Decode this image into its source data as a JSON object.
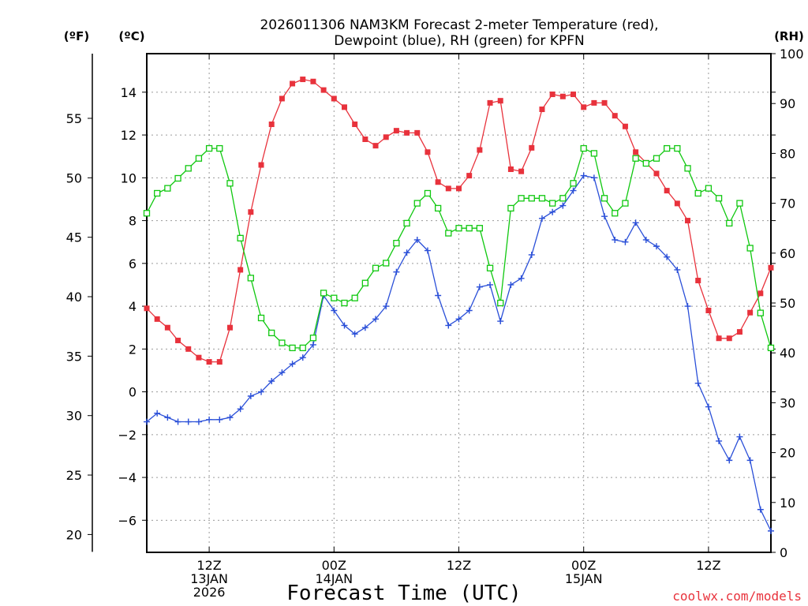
{
  "chart_data": {
    "type": "line",
    "title_lines": [
      "2026011306 NAM3KM Forecast 2-meter Temperature (red),",
      "Dewpoint (blue), RH (green) for KPFN"
    ],
    "xlabel": "Forecast Time (UTC)",
    "credit": "coolwx.com/models",
    "left_axis_c": {
      "unit": "(ºC)",
      "range": [
        -7.5,
        15.8
      ],
      "ticks": [
        -6,
        -4,
        -2,
        0,
        2,
        4,
        6,
        8,
        10,
        12,
        14
      ]
    },
    "left_axis_f": {
      "unit": "(ºF)",
      "ticks": [
        20,
        25,
        30,
        35,
        40,
        45,
        50,
        55
      ]
    },
    "right_axis_rh": {
      "unit": "(RH)",
      "range": [
        0,
        100
      ],
      "ticks": [
        0,
        10,
        20,
        30,
        40,
        50,
        60,
        70,
        80,
        90,
        100
      ]
    },
    "x_range_hours": [
      0,
      60
    ],
    "x_ticks": [
      {
        "hour": 6,
        "lines": [
          "12Z",
          "13JAN",
          "2026"
        ]
      },
      {
        "hour": 18,
        "lines": [
          "00Z",
          "14JAN"
        ]
      },
      {
        "hour": 30,
        "lines": [
          "12Z"
        ]
      },
      {
        "hour": 42,
        "lines": [
          "00Z",
          "15JAN"
        ]
      },
      {
        "hour": 54,
        "lines": [
          "12Z"
        ]
      }
    ],
    "series": [
      {
        "name": "2-meter Temperature",
        "units": "C",
        "color": "#e8323c",
        "marker": "filled-square",
        "values": [
          3.9,
          3.4,
          3.0,
          2.4,
          2.0,
          1.6,
          1.4,
          1.4,
          3.0,
          5.7,
          8.4,
          10.6,
          12.5,
          13.7,
          14.4,
          14.6,
          14.5,
          14.1,
          13.7,
          13.3,
          12.5,
          11.8,
          11.5,
          11.9,
          12.2,
          12.1,
          12.1,
          11.2,
          9.8,
          9.5,
          9.5,
          10.1,
          11.3,
          13.5,
          13.6,
          10.4,
          10.3,
          11.4,
          13.2,
          13.9,
          13.8,
          13.9,
          13.3,
          13.5,
          13.5,
          12.9,
          12.4,
          11.2,
          10.7,
          10.2,
          9.4,
          8.8,
          8.0,
          5.2,
          3.8,
          2.5,
          2.5,
          2.8,
          3.7,
          4.6,
          5.8
        ]
      },
      {
        "name": "Dewpoint",
        "units": "C",
        "color": "#2a4fd8",
        "marker": "plus",
        "values": [
          -1.4,
          -1.0,
          -1.2,
          -1.4,
          -1.4,
          -1.4,
          -1.3,
          -1.3,
          -1.2,
          -0.8,
          -0.2,
          0.0,
          0.5,
          0.9,
          1.3,
          1.6,
          2.2,
          4.5,
          3.8,
          3.1,
          2.7,
          3.0,
          3.4,
          4.0,
          5.6,
          6.5,
          7.1,
          6.6,
          4.5,
          3.1,
          3.4,
          3.8,
          4.9,
          5.0,
          3.3,
          5.0,
          5.3,
          6.4,
          8.1,
          8.4,
          8.7,
          9.4,
          10.1,
          10.0,
          8.2,
          7.1,
          7.0,
          7.9,
          7.1,
          6.8,
          6.3,
          5.7,
          4.0,
          0.4,
          -0.7,
          -2.3,
          -3.2,
          -2.1,
          -3.2,
          -5.5,
          -6.5
        ]
      },
      {
        "name": "RH",
        "units": "%",
        "color": "#10c810",
        "marker": "open-square",
        "values": [
          68,
          72,
          73,
          75,
          77,
          79,
          81,
          81,
          74,
          63,
          55,
          47,
          44,
          42,
          41,
          41,
          43,
          52,
          51,
          50,
          51,
          54,
          57,
          58,
          62,
          66,
          70,
          72,
          69,
          64,
          65,
          65,
          65,
          57,
          50,
          69,
          71,
          71,
          71,
          70,
          71,
          74,
          81,
          80,
          71,
          68,
          70,
          79,
          78,
          79,
          81,
          81,
          77,
          72,
          73,
          71,
          66,
          70,
          61,
          48,
          41
        ]
      }
    ]
  }
}
